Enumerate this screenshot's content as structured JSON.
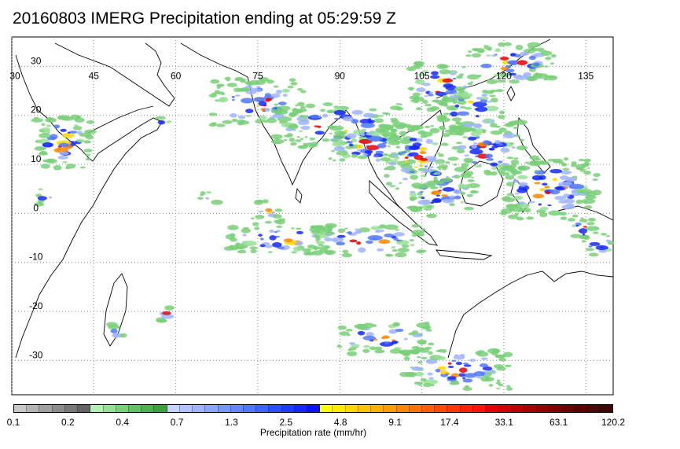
{
  "title": "20160803 IMERG Precipitation ending at 05:29:59 Z",
  "map": {
    "lon_labels": [
      "30",
      "45",
      "60",
      "75",
      "90",
      "105",
      "120",
      "135"
    ],
    "lat_labels": [
      "30",
      "20",
      "10",
      "0",
      "-10",
      "-20",
      "-30"
    ],
    "lon_values": [
      30,
      45,
      60,
      75,
      90,
      105,
      120,
      135
    ],
    "lat_values": [
      30,
      20,
      10,
      0,
      -10,
      -20,
      -30
    ],
    "extent": {
      "lon_min": 30,
      "lon_max": 140,
      "lat_min": -37,
      "lat_max": 36
    }
  },
  "colorbar": {
    "colors": [
      "#c8c8c8",
      "#b4b4b4",
      "#a0a0a0",
      "#8c8c8c",
      "#787878",
      "#646464",
      "#b4f0b4",
      "#96e096",
      "#78d078",
      "#64c064",
      "#50b050",
      "#3ca03c",
      "#c8d2ff",
      "#b4c3ff",
      "#a0b4ff",
      "#8ca5ff",
      "#7896ff",
      "#6487ff",
      "#5078ff",
      "#3c64ff",
      "#2850ff",
      "#1e3cff",
      "#1428ff",
      "#0a14ff",
      "#ffff00",
      "#ffeb00",
      "#ffd700",
      "#ffc300",
      "#ffaf00",
      "#ff9b00",
      "#ff8700",
      "#ff7300",
      "#ff5f00",
      "#ff4b00",
      "#ff3700",
      "#ff2300",
      "#ff1400",
      "#e60000",
      "#d20000",
      "#be0000",
      "#aa0000",
      "#960000",
      "#820000",
      "#6e0000",
      "#5a0000",
      "#4b0a0a",
      "#3c0a0a"
    ],
    "tick_labels": [
      "0.1",
      "0.2",
      "0.4",
      "0.7",
      "1.3",
      "2.5",
      "4.8",
      "9.1",
      "17.4",
      "33.1",
      "63.1",
      "120.2"
    ],
    "label": "Precipitation rate (mm/hr)"
  }
}
